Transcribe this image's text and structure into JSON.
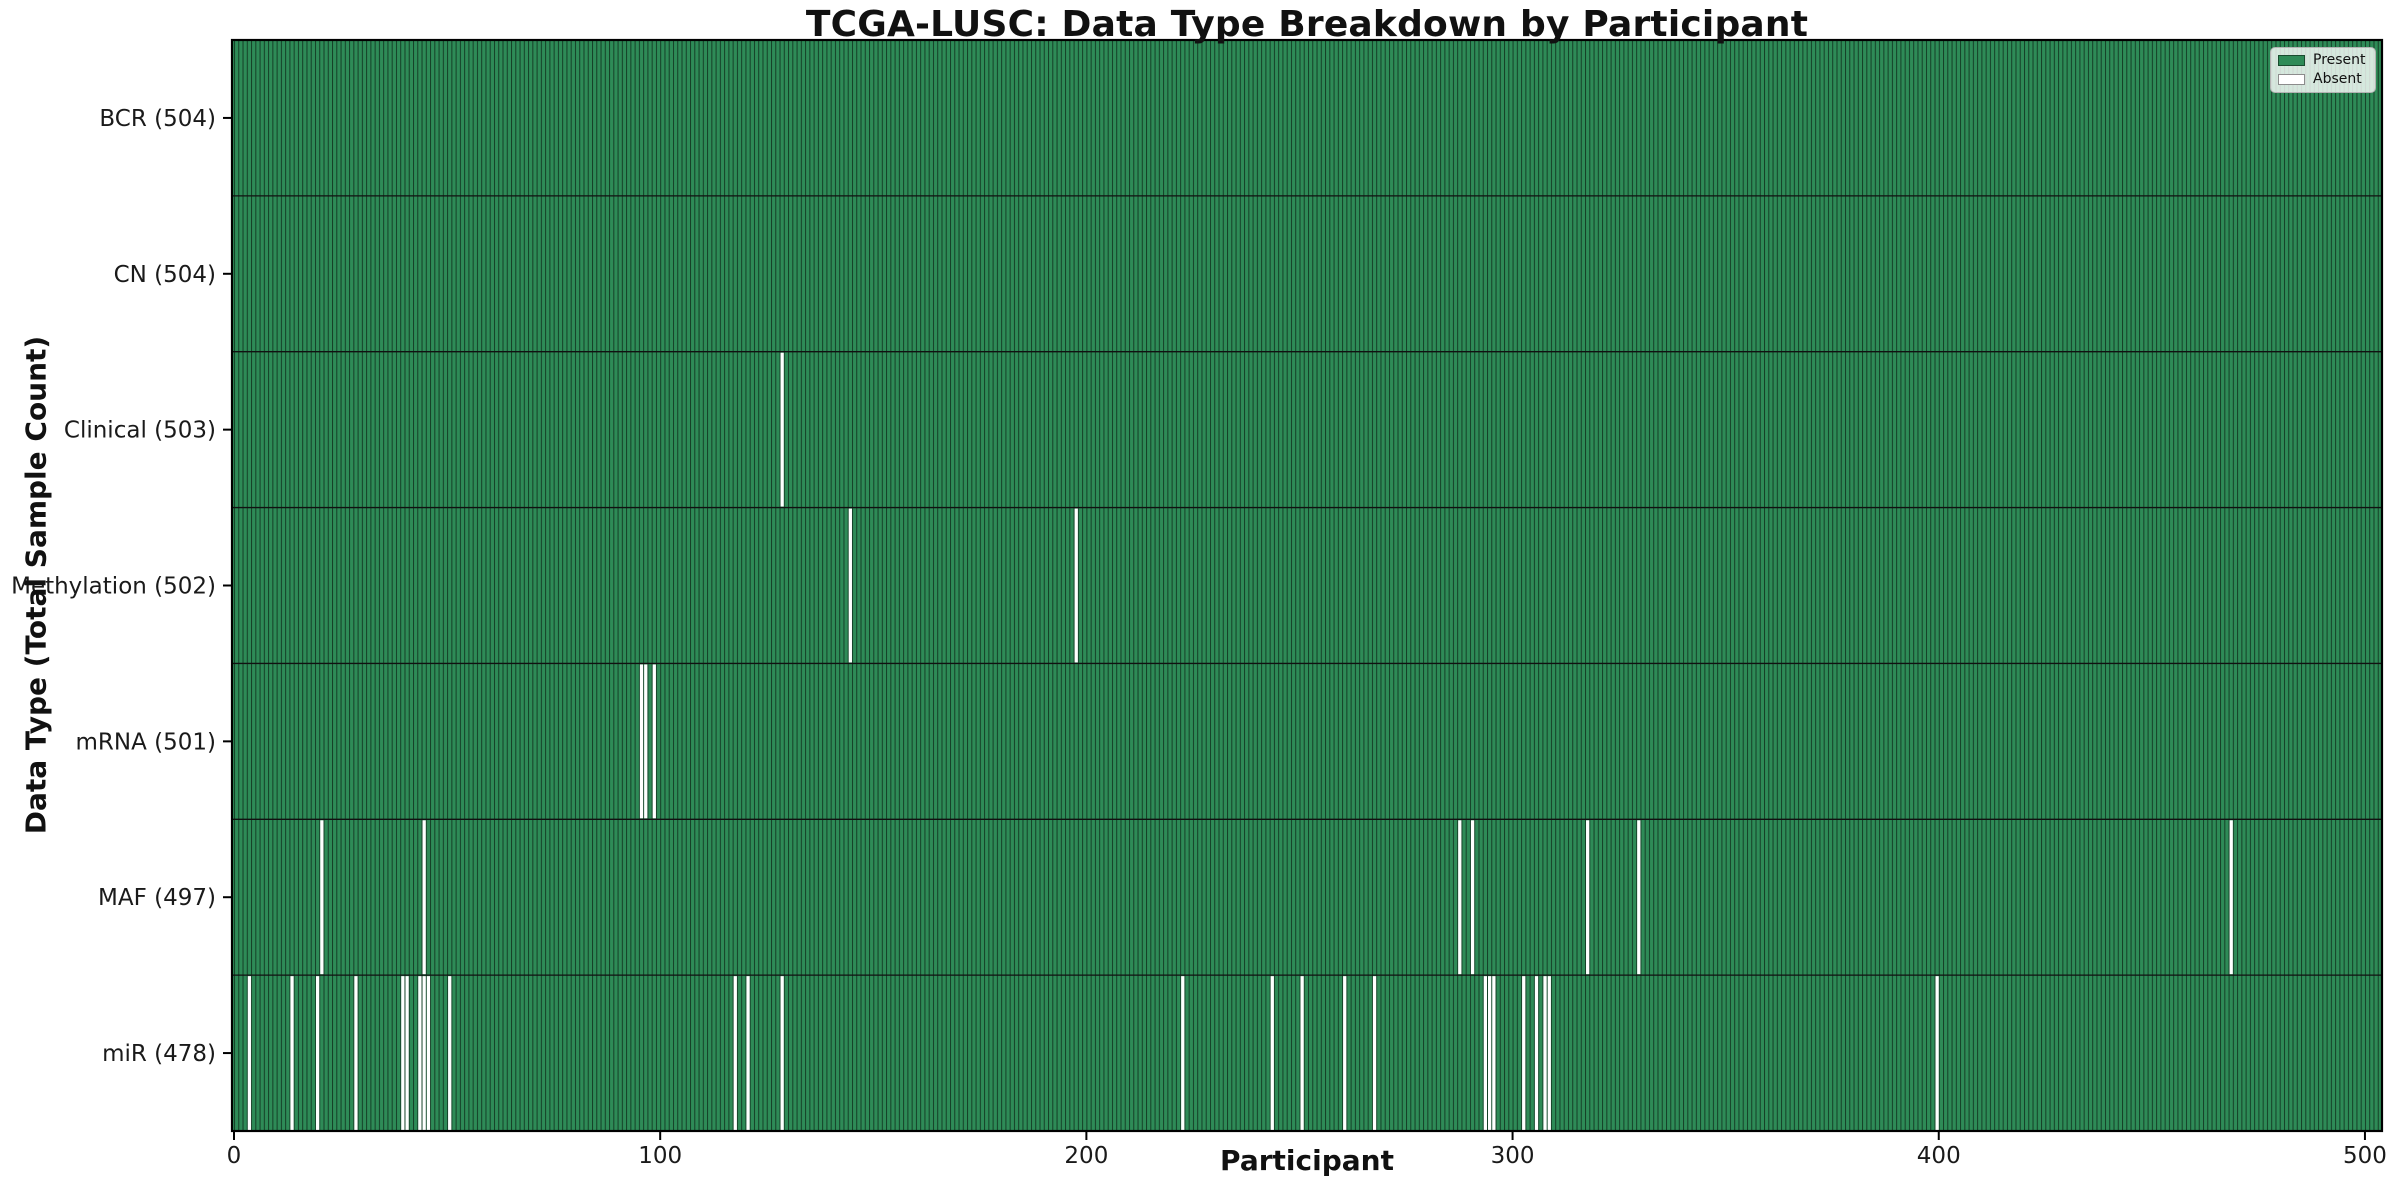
{
  "chart_data": {
    "type": "heatmap",
    "title": "TCGA-LUSC: Data Type Breakdown by Participant",
    "xlabel": "Participant",
    "ylabel": "Data Type (Total Sample Count)",
    "n_participants": 504,
    "x_ticks": [
      0,
      100,
      200,
      300,
      400,
      500
    ],
    "x_range": [
      0,
      504
    ],
    "grid": false,
    "legend": {
      "position": "upper right",
      "entries": [
        {
          "label": "Present",
          "color": "#2e8b57"
        },
        {
          "label": "Absent",
          "color": "#ffffff"
        }
      ]
    },
    "colors": {
      "present": "#2e8b57",
      "absent": "#ffffff",
      "bar_edge": "rgba(0,0,0,0.55)",
      "divider": "#111111",
      "spine": "#000000",
      "text": "#1a1a1a"
    },
    "rows": [
      {
        "label": "BCR (504)",
        "name": "BCR",
        "total": 504,
        "absent": []
      },
      {
        "label": "CN (504)",
        "name": "CN",
        "total": 504,
        "absent": []
      },
      {
        "label": "Clinical (503)",
        "name": "Clinical",
        "total": 503,
        "absent": [
          128
        ]
      },
      {
        "label": "Methylation (502)",
        "name": "Methylation",
        "total": 502,
        "absent": [
          144,
          197
        ]
      },
      {
        "label": "mRNA (501)",
        "name": "mRNA",
        "total": 501,
        "absent": [
          95,
          96,
          98
        ]
      },
      {
        "label": "MAF (497)",
        "name": "MAF",
        "total": 497,
        "absent": [
          20,
          44,
          287,
          290,
          317,
          329,
          468
        ]
      },
      {
        "label": "miR (478)",
        "name": "miR",
        "total": 478,
        "absent": [
          3,
          13,
          19,
          28,
          39,
          40,
          43,
          44,
          45,
          50,
          117,
          120,
          128,
          222,
          243,
          250,
          260,
          267,
          293,
          294,
          295,
          302,
          305,
          307,
          308,
          399
        ]
      }
    ]
  }
}
